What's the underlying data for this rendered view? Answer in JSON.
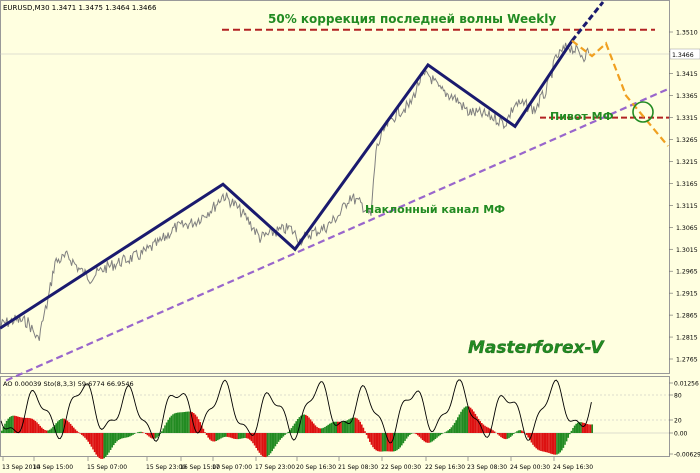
{
  "main": {
    "symbol_line": "EURUSD,M30  1.3471 1.3475 1.3464 1.3466",
    "annotations": {
      "fib": "50% коррекция последней волны Weekly",
      "pivot": "Пивот МФ",
      "channel": "Наклонный канал МФ",
      "brand": "Masterforex-V"
    },
    "price_labels": [
      "1.3510",
      "1.3466",
      "1.3415",
      "1.3365",
      "1.3315",
      "1.3265",
      "1.3215",
      "1.3165",
      "1.3115",
      "1.3065",
      "1.3015",
      "1.2965",
      "1.2915",
      "1.2865",
      "1.2815",
      "1.2765"
    ],
    "current_price": "1.3466"
  },
  "indicator": {
    "label": "AO 0.00039  Sto(8,3,3) 59.6774 66.9546",
    "scale": [
      "0.01256",
      "80",
      "20",
      "0.00",
      "-0.00629"
    ]
  },
  "time_axis": [
    "13 Sep 2010",
    "14 Sep 15:00",
    "15 Sep 07:00",
    "15 Sep 23:00",
    "16 Sep 15:00",
    "17 Sep 07:00",
    "17 Sep 23:00",
    "20 Sep 16:30",
    "21 Sep 08:30",
    "22 Sep 00:30",
    "22 Sep 16:30",
    "23 Sep 08:30",
    "24 Sep 00:30",
    "24 Sep 16:30"
  ],
  "colors": {
    "background": "#FFFFE0",
    "price_line": "#808080",
    "wave_line": "#1A1A6E",
    "channel_line": "#9966CC",
    "fib_line": "#B22222",
    "pivot_line": "#B22222",
    "forecast_line": "#F0A020",
    "annotation_text": "#228B22",
    "ao_up": "#228B22",
    "ao_down": "#DD1111"
  },
  "chart_data": {
    "type": "line",
    "title": "",
    "y_range": [
      1.2745,
      1.3535
    ],
    "wave_points": [
      [
        0,
        1.2835
      ],
      [
        223,
        1.3163
      ],
      [
        295,
        1.3015
      ],
      [
        428,
        1.3435
      ],
      [
        515,
        1.3295
      ],
      [
        572,
        1.349
      ]
    ],
    "channel_points": [
      [
        35,
        1.2745
      ],
      [
        648,
        1.336
      ]
    ],
    "forecast_points": [
      [
        572,
        1.349
      ],
      [
        592,
        1.3455
      ],
      [
        606,
        1.3484
      ],
      [
        626,
        1.3365
      ],
      [
        668,
        1.325
      ]
    ],
    "fib_level": 1.3515,
    "pivot_level": 1.3315
  }
}
